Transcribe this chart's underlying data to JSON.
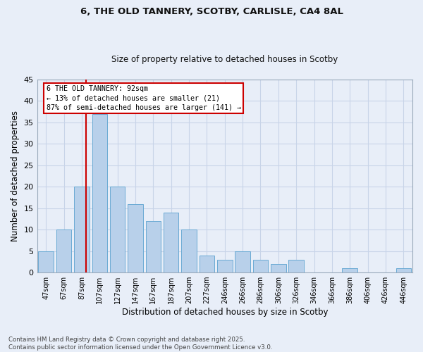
{
  "title_line1": "6, THE OLD TANNERY, SCOTBY, CARLISLE, CA4 8AL",
  "title_line2": "Size of property relative to detached houses in Scotby",
  "xlabel": "Distribution of detached houses by size in Scotby",
  "ylabel": "Number of detached properties",
  "categories": [
    "47sqm",
    "67sqm",
    "87sqm",
    "107sqm",
    "127sqm",
    "147sqm",
    "167sqm",
    "187sqm",
    "207sqm",
    "227sqm",
    "246sqm",
    "266sqm",
    "286sqm",
    "306sqm",
    "326sqm",
    "346sqm",
    "366sqm",
    "386sqm",
    "406sqm",
    "426sqm",
    "446sqm"
  ],
  "values": [
    5,
    10,
    20,
    37,
    20,
    16,
    12,
    14,
    10,
    4,
    3,
    5,
    3,
    2,
    3,
    0,
    0,
    1,
    0,
    0,
    1
  ],
  "bar_color": "#b8d0ea",
  "bar_edge_color": "#6aaad4",
  "grid_color": "#c8d4e8",
  "background_color": "#e8eef8",
  "property_line_color": "#cc0000",
  "annotation_text": "6 THE OLD TANNERY: 92sqm\n← 13% of detached houses are smaller (21)\n87% of semi-detached houses are larger (141) →",
  "annotation_box_color": "#ffffff",
  "annotation_box_edge": "#cc0000",
  "footer_text": "Contains HM Land Registry data © Crown copyright and database right 2025.\nContains public sector information licensed under the Open Government Licence v3.0.",
  "ylim": [
    0,
    45
  ],
  "yticks": [
    0,
    5,
    10,
    15,
    20,
    25,
    30,
    35,
    40,
    45
  ],
  "line_x_index": 2.25
}
